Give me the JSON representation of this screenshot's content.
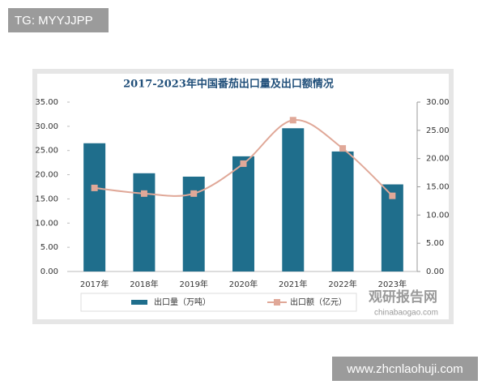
{
  "overlays": {
    "top_tag": "TG: MYYJJPP",
    "bottom_tag": "www.zhcnlaohuji.com"
  },
  "watermark": {
    "name": "观研报告网",
    "url": "chinabaogao.com"
  },
  "chart_data": {
    "type": "bar-line",
    "title": "2017-2023年中国番茄出口量及出口额情况",
    "categories": [
      "2017年",
      "2018年",
      "2019年",
      "2020年",
      "2021年",
      "2022年",
      "2023年"
    ],
    "series": [
      {
        "name": "出口量（万吨）",
        "color": "#1f6e8c",
        "type": "bar",
        "values": [
          26.5,
          20.3,
          19.6,
          23.8,
          29.6,
          24.8,
          18.0
        ]
      },
      {
        "name": "出口额（亿元）",
        "color": "#e0a898",
        "type": "line",
        "axis": "y2",
        "values": [
          14.8,
          13.8,
          13.8,
          19.1,
          26.8,
          21.8,
          13.4
        ]
      }
    ],
    "ylim": [
      0,
      35
    ],
    "yticks": [
      {
        "value": 0,
        "label": "0.00"
      },
      {
        "value": 5,
        "label": "5.00"
      },
      {
        "value": 10,
        "label": "10.00"
      },
      {
        "value": 15,
        "label": "15.00"
      },
      {
        "value": 20,
        "label": "20.00"
      },
      {
        "value": 25,
        "label": "25.00"
      },
      {
        "value": 30,
        "label": "30.00"
      },
      {
        "value": 35,
        "label": "35.00"
      }
    ],
    "y2lim": [
      0,
      30
    ],
    "y2ticks": [
      {
        "value": 0,
        "label": "0.00"
      },
      {
        "value": 5,
        "label": "5.00"
      },
      {
        "value": 10,
        "label": "10.00"
      },
      {
        "value": 15,
        "label": "15.00"
      },
      {
        "value": 20,
        "label": "20.00"
      },
      {
        "value": 25,
        "label": "25.00"
      },
      {
        "value": 30,
        "label": "30.00"
      }
    ],
    "legend": "bottom",
    "grid": false
  }
}
